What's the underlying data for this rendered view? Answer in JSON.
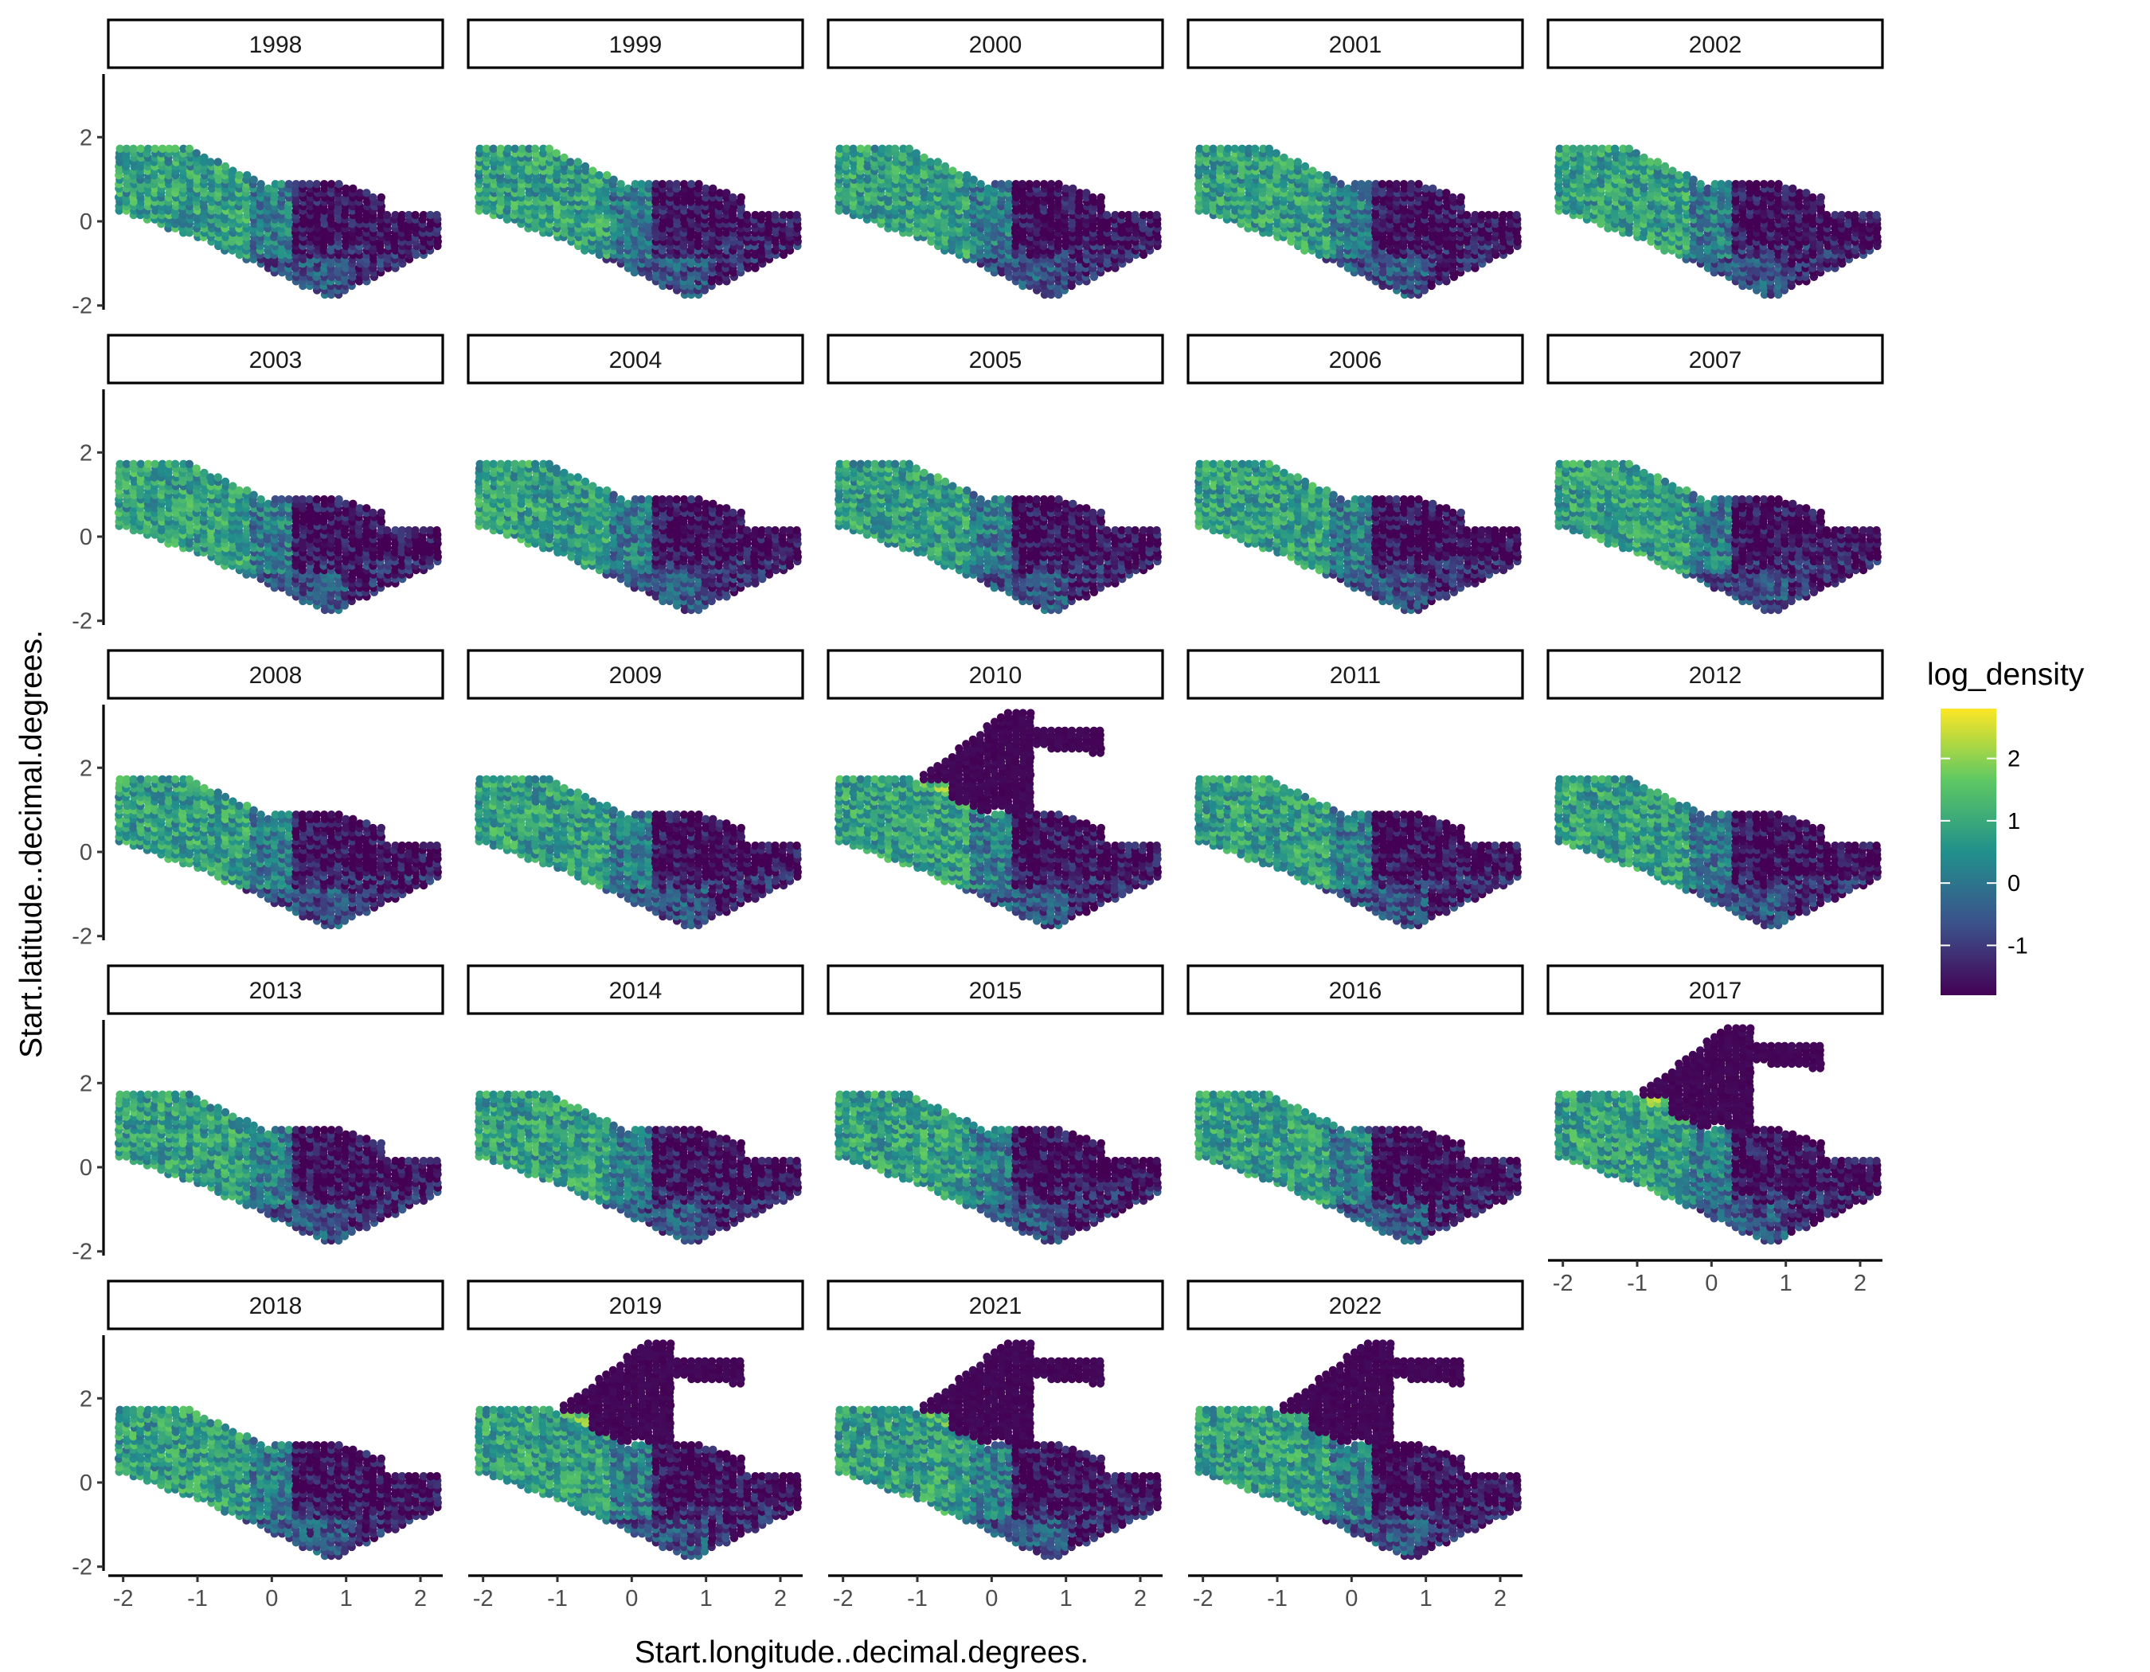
{
  "chart_data": {
    "type": "scatter",
    "facet_by": "year",
    "panels": [
      "1998",
      "1999",
      "2000",
      "2001",
      "2002",
      "2003",
      "2004",
      "2005",
      "2006",
      "2007",
      "2008",
      "2009",
      "2010",
      "2011",
      "2012",
      "2013",
      "2014",
      "2015",
      "2016",
      "2017",
      "2018",
      "2019",
      "2021",
      "2022"
    ],
    "extended_grid_panels": [
      "2010",
      "2017",
      "2019",
      "2021",
      "2022"
    ],
    "xlabel": "Start.longitude..decimal.degrees.",
    "ylabel": "Start.latitude..decimal.degrees.",
    "xlim": [
      -2.2,
      2.3
    ],
    "ylim": [
      -2.1,
      3.5
    ],
    "x_ticks": [
      "-2",
      "-1",
      "0",
      "1",
      "2"
    ],
    "y_ticks": [
      "-2",
      "0",
      "2"
    ],
    "legend": {
      "title": "log_density",
      "position": "right",
      "range": [
        -1.8,
        2.8
      ],
      "ticks": [
        "2",
        "1",
        "0",
        "-1"
      ],
      "palette": [
        "#440154",
        "#3b528b",
        "#21908c",
        "#5dc863",
        "#fde725"
      ]
    },
    "grid": false
  }
}
